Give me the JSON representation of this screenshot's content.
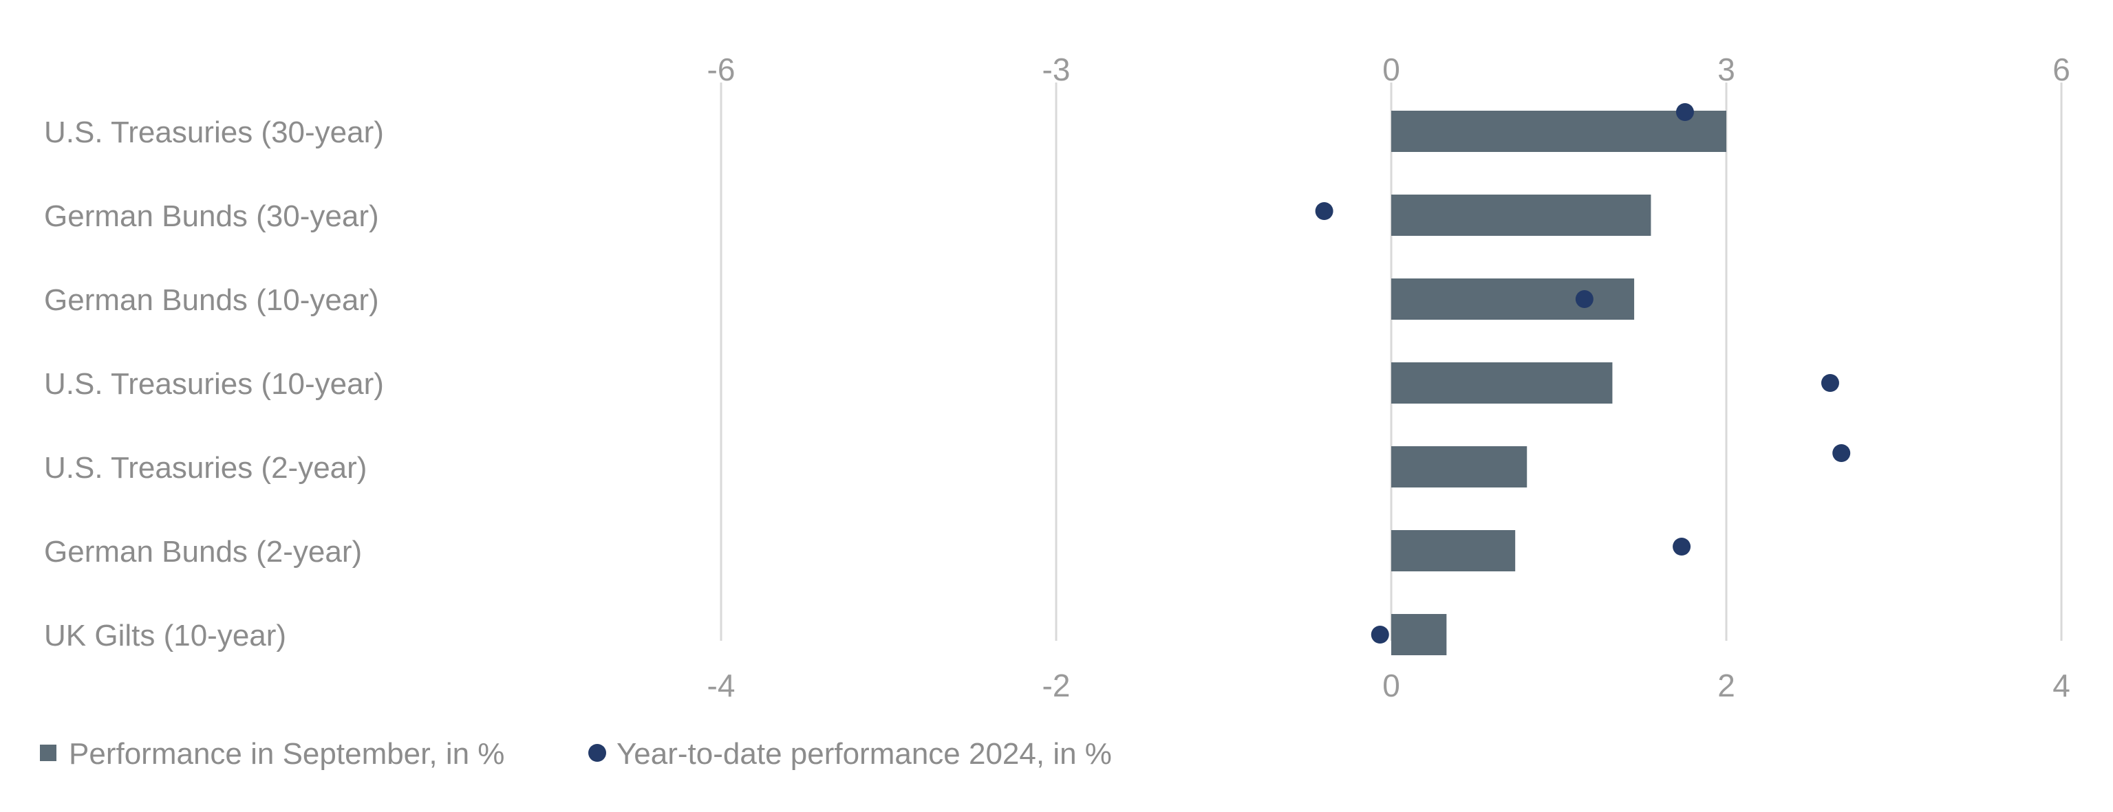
{
  "chart_data": {
    "type": "bar",
    "categories": [
      "U.S. Treasuries (30-year)",
      "German Bunds (30-year)",
      "German Bunds (10-year)",
      "U.S. Treasuries (10-year)",
      "U.S. Treasuries (2-year)",
      "German Bunds (2-year)",
      "UK Gilts (10-year)"
    ],
    "series": [
      {
        "name": "Performance in September, in %",
        "type": "bar",
        "axis": "bottom",
        "color": "#5b6b76",
        "values": [
          2.0,
          1.55,
          1.45,
          1.32,
          0.81,
          0.74,
          0.33
        ]
      },
      {
        "name": "Year-to-date performance 2024, in %",
        "type": "scatter",
        "axis": "top",
        "color": "#233a68",
        "values": [
          2.63,
          -0.6,
          1.73,
          3.93,
          4.03,
          2.6,
          -0.1
        ]
      }
    ],
    "x_top_ticks": [
      "-6",
      "-3",
      "0",
      "3",
      "6"
    ],
    "x_top_lim": [
      -6,
      6
    ],
    "x_bottom_ticks": [
      "-4",
      "-2",
      "0",
      "2",
      "4"
    ],
    "x_bottom_lim": [
      -4,
      4
    ],
    "grid": true,
    "legend_position": "bottom-left",
    "title": "",
    "xlabel": "",
    "ylabel": ""
  }
}
